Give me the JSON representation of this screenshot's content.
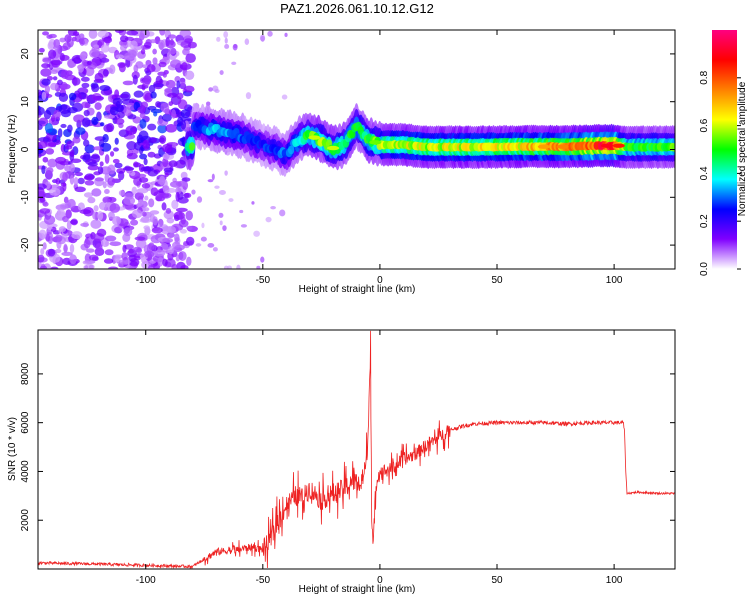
{
  "title": "PAZ1.2026.061.10.12.G12",
  "chart_data": [
    {
      "type": "heatmap",
      "xlabel": "Height of straight line (km)",
      "ylabel": "Frequency (Hz)",
      "xlim": [
        -146,
        126
      ],
      "ylim": [
        -25,
        25
      ],
      "xticks": [
        -100,
        -50,
        0,
        50,
        100
      ],
      "yticks": [
        -20,
        -10,
        0,
        10,
        20
      ],
      "xtick_labels": [
        "-100",
        "-50",
        "0",
        "50",
        "100"
      ],
      "ytick_labels": [
        "-20",
        "-10",
        "0",
        "10",
        "20"
      ],
      "colorbar": {
        "label": "Normalized spectral amplitude",
        "range": [
          0,
          1
        ],
        "ticks": [
          0,
          0.2,
          0.4,
          0.6,
          0.8
        ],
        "tick_labels": [
          "0.0",
          "0.2",
          "0.4",
          "0.6",
          "0.8"
        ],
        "colors": [
          "#ffffff",
          "#8000ff",
          "#0000ff",
          "#00ffff",
          "#00ff00",
          "#ffff00",
          "#ff8000",
          "#ff0000",
          "#ff0080"
        ]
      },
      "ridge": [
        {
          "x": -80,
          "f": 5,
          "a": 0.25
        },
        {
          "x": -70,
          "f": 4,
          "a": 0.35
        },
        {
          "x": -60,
          "f": 3,
          "a": 0.3
        },
        {
          "x": -50,
          "f": 1,
          "a": 0.25
        },
        {
          "x": -40,
          "f": -1,
          "a": 0.3
        },
        {
          "x": -35,
          "f": 2,
          "a": 0.4
        },
        {
          "x": -30,
          "f": 3,
          "a": 0.5
        },
        {
          "x": -25,
          "f": 2,
          "a": 0.55
        },
        {
          "x": -20,
          "f": 0,
          "a": 0.5
        },
        {
          "x": -15,
          "f": 1,
          "a": 0.5
        },
        {
          "x": -10,
          "f": 5,
          "a": 0.45
        },
        {
          "x": -5,
          "f": 2,
          "a": 0.5
        },
        {
          "x": 0,
          "f": 1,
          "a": 0.55
        },
        {
          "x": 10,
          "f": 1,
          "a": 0.6
        },
        {
          "x": 20,
          "f": 0.5,
          "a": 0.6
        },
        {
          "x": 40,
          "f": 0.5,
          "a": 0.62
        },
        {
          "x": 60,
          "f": 0.6,
          "a": 0.65
        },
        {
          "x": 80,
          "f": 0.6,
          "a": 0.7
        },
        {
          "x": 95,
          "f": 0.8,
          "a": 0.85
        },
        {
          "x": 100,
          "f": 0.8,
          "a": 0.85
        },
        {
          "x": 105,
          "f": 0.5,
          "a": 0.5
        },
        {
          "x": 126,
          "f": 0.5,
          "a": 0.5
        }
      ]
    },
    {
      "type": "line",
      "xlabel": "Height of straight line (km)",
      "ylabel": "SNR (10 * v/v)",
      "xlim": [
        -146,
        126
      ],
      "ylim": [
        0,
        9800
      ],
      "xticks": [
        -100,
        -50,
        0,
        50,
        100
      ],
      "yticks": [
        2000,
        4000,
        6000,
        8000
      ],
      "xtick_labels": [
        "-100",
        "-50",
        "0",
        "50",
        "100"
      ],
      "ytick_labels": [
        "2000",
        "4000",
        "6000",
        "8000"
      ],
      "series": [
        {
          "name": "SNR",
          "color": "#ee2222",
          "x": [
            -146,
            -120,
            -100,
            -80,
            -75,
            -70,
            -60,
            -55,
            -50,
            -47,
            -44,
            -40,
            -36,
            -33,
            -30,
            -27,
            -25,
            -20,
            -15,
            -12,
            -8,
            -6,
            -5,
            -4,
            -3.5,
            -3,
            -2.5,
            -2,
            -1,
            0,
            5,
            10,
            15,
            20,
            25,
            30,
            35,
            40,
            50,
            60,
            70,
            80,
            90,
            100,
            104,
            104.5,
            105,
            105.5,
            110,
            120,
            126
          ],
          "y": [
            250,
            200,
            150,
            100,
            400,
            700,
            800,
            900,
            800,
            1100,
            1900,
            2600,
            3000,
            2900,
            3300,
            3000,
            2800,
            3100,
            3300,
            3600,
            3500,
            4200,
            5500,
            9800,
            2000,
            900,
            1500,
            3000,
            3800,
            4000,
            4100,
            4500,
            4700,
            5100,
            5400,
            5700,
            5850,
            5950,
            6000,
            6000,
            6000,
            5950,
            6000,
            6000,
            6000,
            5500,
            4000,
            3100,
            3150,
            3100,
            3100
          ]
        }
      ]
    }
  ]
}
